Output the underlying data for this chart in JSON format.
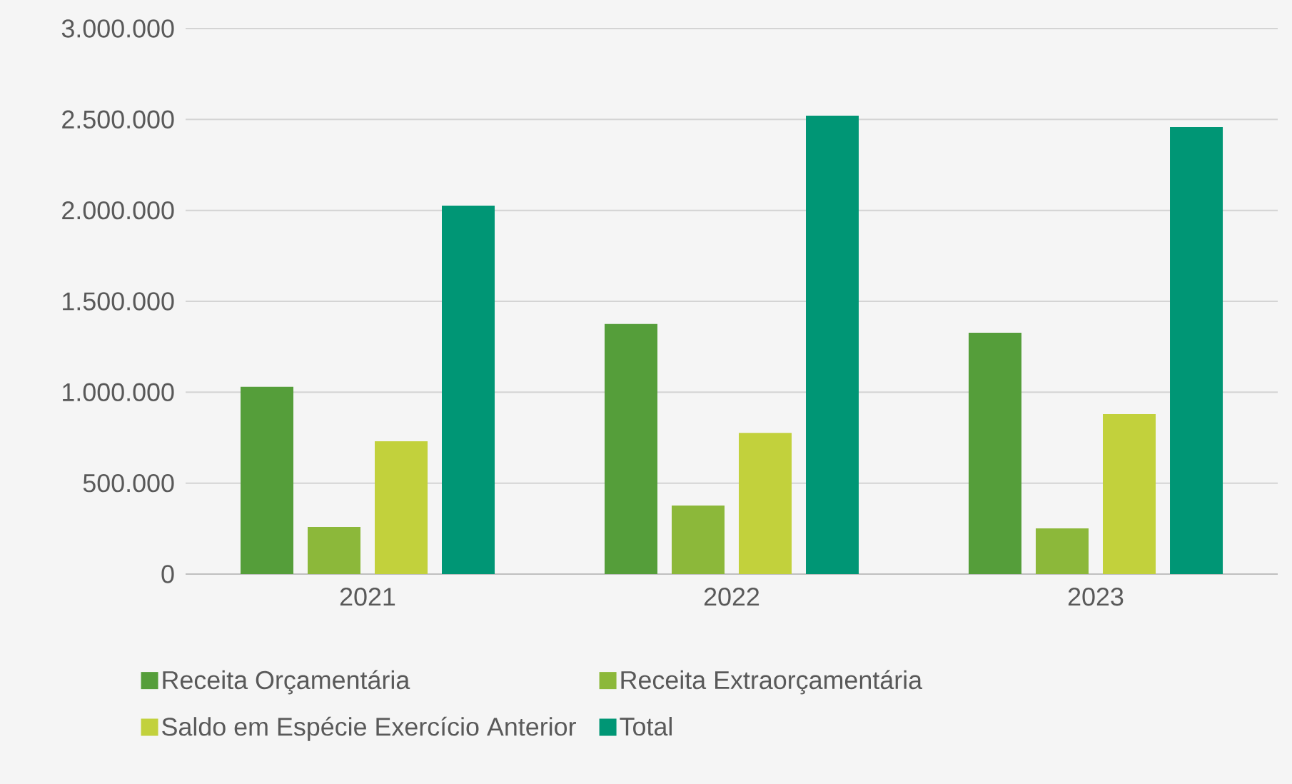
{
  "chart_data": {
    "type": "bar",
    "categories": [
      "2021",
      "2022",
      "2023"
    ],
    "series": [
      {
        "name": "Receita Orçamentária",
        "color": "#559e3a",
        "values": [
          1030000,
          1375000,
          1327000
        ]
      },
      {
        "name": "Receita Extraorçamentária",
        "color": "#8cb83a",
        "values": [
          259000,
          377000,
          251000
        ]
      },
      {
        "name": "Saldo em Espécie Exercício Anterior",
        "color": "#c2d13c",
        "values": [
          730000,
          777000,
          880000
        ]
      },
      {
        "name": "Total",
        "color": "#009675",
        "values": [
          2026000,
          2521000,
          2458000
        ]
      }
    ],
    "ylim": [
      0,
      3000000
    ],
    "yticks": [
      {
        "value": 0,
        "label": "0"
      },
      {
        "value": 500000,
        "label": "500.000"
      },
      {
        "value": 1000000,
        "label": "1.000.000"
      },
      {
        "value": 1500000,
        "label": "1.500.000"
      },
      {
        "value": 2000000,
        "label": "2.000.000"
      },
      {
        "value": 2500000,
        "label": "2.500.000"
      },
      {
        "value": 3000000,
        "label": "3.000.000"
      }
    ],
    "grid": "y",
    "legend": "bottom"
  }
}
